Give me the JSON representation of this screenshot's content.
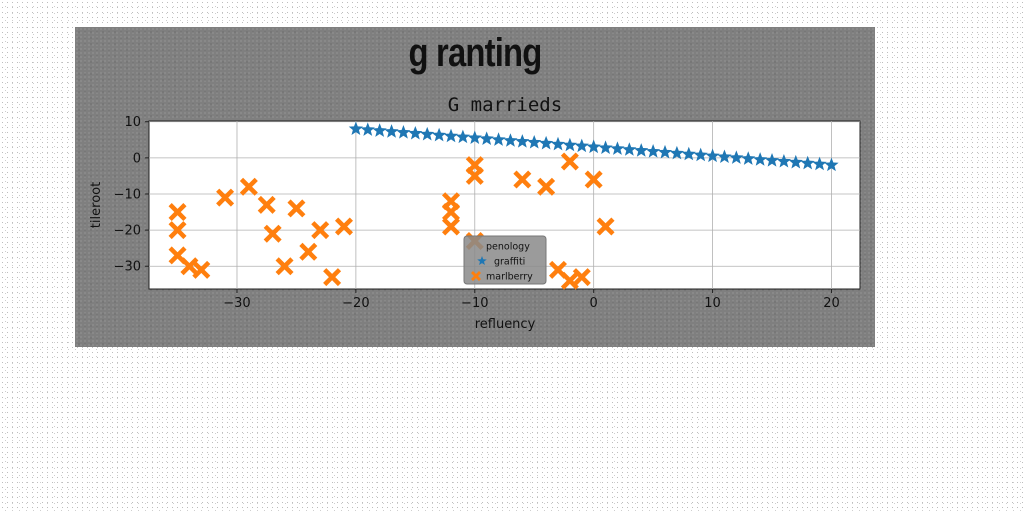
{
  "figure": {
    "suptitle": "g ranting"
  },
  "chart_data": {
    "type": "scatter",
    "title": "G marrieds",
    "xlabel": "refluency",
    "ylabel": "tileroot",
    "xlim": [
      -37.4,
      22.4
    ],
    "ylim": [
      -36.3,
      10.2
    ],
    "xticks": [
      -30,
      -20,
      -10,
      0,
      10,
      20
    ],
    "yticks": [
      10,
      0,
      -10,
      -20,
      -30
    ],
    "grid": true,
    "legend_placement": "lower-center",
    "series": [
      {
        "name": "penology",
        "marker": "none",
        "color": "#1f77b4",
        "x": [],
        "y": []
      },
      {
        "name": "graffiti",
        "marker": "star",
        "color": "#1f77b4",
        "x": [
          -20,
          -19,
          -18,
          -17,
          -16,
          -15,
          -14,
          -13,
          -12,
          -11,
          -10,
          -9,
          -8,
          -7,
          -6,
          -5,
          -4,
          -3,
          -2,
          -1,
          0,
          1,
          2,
          3,
          4,
          5,
          6,
          7,
          8,
          9,
          10,
          11,
          12,
          13,
          14,
          15,
          16,
          17,
          18,
          19,
          20
        ],
        "y": [
          8,
          7.75,
          7.5,
          7.25,
          7,
          6.75,
          6.5,
          6.25,
          6,
          5.75,
          5.5,
          5.25,
          5,
          4.75,
          4.5,
          4.25,
          4,
          3.75,
          3.5,
          3.25,
          3,
          2.75,
          2.5,
          2.25,
          2,
          1.75,
          1.5,
          1.25,
          1,
          0.75,
          0.5,
          0.25,
          0,
          -0.25,
          -0.5,
          -0.75,
          -1,
          -1.25,
          -1.5,
          -1.75,
          -2
        ]
      },
      {
        "name": "marlberry",
        "marker": "x",
        "color": "#ff7f0e",
        "x": [
          -35,
          -35,
          -35,
          -34,
          -33,
          -31,
          -29,
          -27.5,
          -27,
          -26,
          -25,
          -24,
          -23,
          -22,
          -21,
          -12,
          -12,
          -12,
          -10,
          -10,
          -10,
          -6,
          -4,
          -3,
          -2,
          -2,
          -1,
          0,
          1
        ],
        "y": [
          -15,
          -20,
          -27,
          -30,
          -31,
          -11,
          -8,
          -13,
          -21,
          -30,
          -14,
          -26,
          -20,
          -33,
          -19,
          -12,
          -15,
          -19,
          -2,
          -5,
          -23,
          -6,
          -8,
          -31,
          -1,
          -34,
          -33,
          -6,
          -19
        ]
      }
    ]
  }
}
